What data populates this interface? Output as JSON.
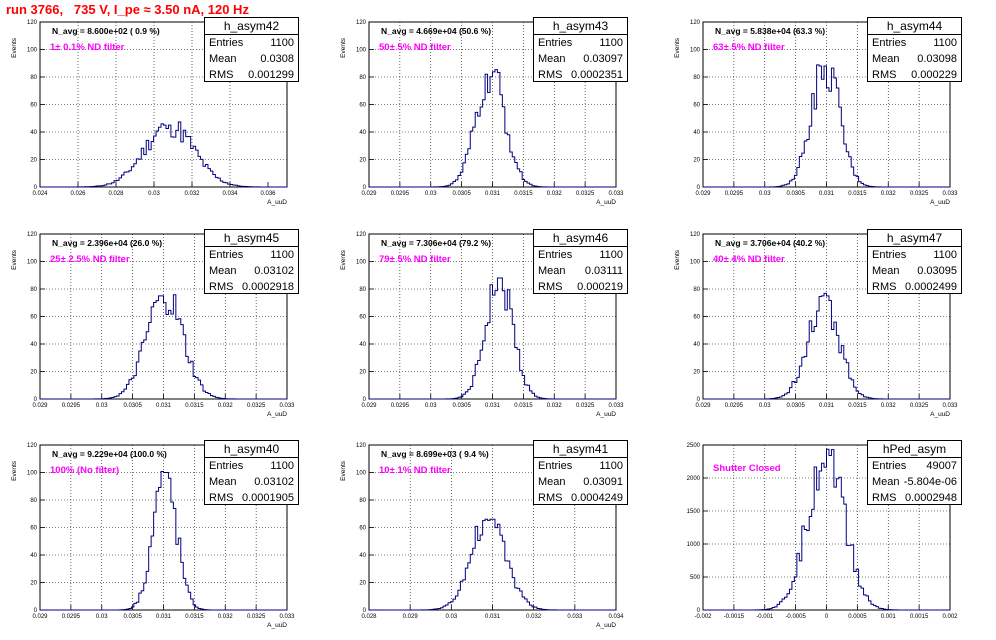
{
  "canvas_title": "run 3766,   735 V, I_pe ≈ 3.50 nA, 120 Hz",
  "chart_data": [
    {
      "type": "histogram",
      "name": "h_asym42",
      "stats": {
        "entries": "1100",
        "mean": "0.0308",
        "rms": "0.001299"
      },
      "navg": "N_avg = 8.600e+02 ( 0.9 %)",
      "filter": "1± 0.1% ND filter",
      "xlabel": "A_uuD",
      "ylabel": "Events",
      "xlim": [
        0.024,
        0.037
      ],
      "ylim": [
        0,
        120
      ],
      "xticks": [
        "0.024",
        "0.026",
        "0.028",
        "0.03",
        "0.032",
        "0.034",
        "0.036"
      ],
      "xtick_values": [
        0.024,
        0.026,
        0.028,
        0.03,
        0.032,
        0.034,
        0.036
      ],
      "yticks": [
        0,
        20,
        40,
        60,
        80,
        100,
        120
      ],
      "mean_value": 0.0308,
      "rms_value": 0.001299,
      "entries_value": 1100,
      "peak": 45
    },
    {
      "type": "histogram",
      "name": "h_asym43",
      "stats": {
        "entries": "1100",
        "mean": "0.03097",
        "rms": "0.0002351"
      },
      "navg": "N_avg = 4.669e+04 (50.6 %)",
      "filter": "50± 5% ND filter",
      "xlabel": "A_uuD",
      "ylabel": "Events",
      "xlim": [
        0.029,
        0.033
      ],
      "ylim": [
        0,
        120
      ],
      "xticks": [
        "0.029",
        "0.0295",
        "0.03",
        "0.0305",
        "0.031",
        "0.0315",
        "0.032",
        "0.0325",
        "0.033"
      ],
      "xtick_values": [
        0.029,
        0.0295,
        0.03,
        0.0305,
        0.031,
        0.0315,
        0.032,
        0.0325,
        0.033
      ],
      "yticks": [
        0,
        20,
        40,
        60,
        80,
        100,
        120
      ],
      "mean_value": 0.03097,
      "rms_value": 0.0002351,
      "entries_value": 1100,
      "peak": 82
    },
    {
      "type": "histogram",
      "name": "h_asym44",
      "stats": {
        "entries": "1100",
        "mean": "0.03098",
        "rms": "0.000229"
      },
      "navg": "N_avg = 5.838e+04 (63.3 %)",
      "filter": "63± 5% ND filter",
      "xlabel": "A_uuD",
      "ylabel": "Events",
      "xlim": [
        0.029,
        0.033
      ],
      "ylim": [
        0,
        120
      ],
      "xticks": [
        "0.029",
        "0.0295",
        "0.03",
        "0.0305",
        "0.031",
        "0.0315",
        "0.032",
        "0.0325",
        "0.033"
      ],
      "xtick_values": [
        0.029,
        0.0295,
        0.03,
        0.0305,
        0.031,
        0.0315,
        0.032,
        0.0325,
        0.033
      ],
      "yticks": [
        0,
        20,
        40,
        60,
        80,
        100,
        120
      ],
      "mean_value": 0.03098,
      "rms_value": 0.000229,
      "entries_value": 1100,
      "peak": 88
    },
    {
      "type": "histogram",
      "name": "h_asym45",
      "stats": {
        "entries": "1100",
        "mean": "0.03102",
        "rms": "0.0002918"
      },
      "navg": "N_avg = 2.396e+04 (26.0 %)",
      "filter": "25± 2.5% ND filter",
      "xlabel": "A_uuD",
      "ylabel": "Events",
      "xlim": [
        0.029,
        0.033
      ],
      "ylim": [
        0,
        120
      ],
      "xticks": [
        "0.029",
        "0.0295",
        "0.03",
        "0.0305",
        "0.031",
        "0.0315",
        "0.032",
        "0.0325",
        "0.033"
      ],
      "xtick_values": [
        0.029,
        0.0295,
        0.03,
        0.0305,
        0.031,
        0.0315,
        0.032,
        0.0325,
        0.033
      ],
      "yticks": [
        0,
        20,
        40,
        60,
        80,
        100,
        120
      ],
      "mean_value": 0.03102,
      "rms_value": 0.0002918,
      "entries_value": 1100,
      "peak": 75
    },
    {
      "type": "histogram",
      "name": "h_asym46",
      "stats": {
        "entries": "1100",
        "mean": "0.03111",
        "rms": "0.000219"
      },
      "navg": "N_avg = 7.306e+04 (79.2 %)",
      "filter": "79± 5% ND filter",
      "xlabel": "A_uuD",
      "ylabel": "Events",
      "xlim": [
        0.029,
        0.033
      ],
      "ylim": [
        0,
        120
      ],
      "xticks": [
        "0.029",
        "0.0295",
        "0.03",
        "0.0305",
        "0.031",
        "0.0315",
        "0.032",
        "0.0325",
        "0.033"
      ],
      "xtick_values": [
        0.029,
        0.0295,
        0.03,
        0.0305,
        0.031,
        0.0315,
        0.032,
        0.0325,
        0.033
      ],
      "yticks": [
        0,
        20,
        40,
        60,
        80,
        100,
        120
      ],
      "mean_value": 0.03111,
      "rms_value": 0.000219,
      "entries_value": 1100,
      "peak": 88
    },
    {
      "type": "histogram",
      "name": "h_asym47",
      "stats": {
        "entries": "1100",
        "mean": "0.03095",
        "rms": "0.0002499"
      },
      "navg": "N_avg = 3.706e+04 (40.2 %)",
      "filter": "40± 4% ND filter",
      "xlabel": "A_uuD",
      "ylabel": "Events",
      "xlim": [
        0.029,
        0.033
      ],
      "ylim": [
        0,
        120
      ],
      "xticks": [
        "0.029",
        "0.0295",
        "0.03",
        "0.0305",
        "0.031",
        "0.0315",
        "0.032",
        "0.0325",
        "0.033"
      ],
      "xtick_values": [
        0.029,
        0.0295,
        0.03,
        0.0305,
        0.031,
        0.0315,
        0.032,
        0.0325,
        0.033
      ],
      "yticks": [
        0,
        20,
        40,
        60,
        80,
        100,
        120
      ],
      "mean_value": 0.03095,
      "rms_value": 0.0002499,
      "entries_value": 1100,
      "peak": 75
    },
    {
      "type": "histogram",
      "name": "h_asym40",
      "stats": {
        "entries": "1100",
        "mean": "0.03102",
        "rms": "0.0001905"
      },
      "navg": "N_avg = 9.229e+04 (100.0 %)",
      "filter": "100% (No filter)",
      "xlabel": "A_uuD",
      "ylabel": "Events",
      "xlim": [
        0.029,
        0.033
      ],
      "ylim": [
        0,
        120
      ],
      "xticks": [
        "0.029",
        "0.0295",
        "0.03",
        "0.0305",
        "0.031",
        "0.0315",
        "0.032",
        "0.0325",
        "0.033"
      ],
      "xtick_values": [
        0.029,
        0.0295,
        0.03,
        0.0305,
        0.031,
        0.0315,
        0.032,
        0.0325,
        0.033
      ],
      "yticks": [
        0,
        20,
        40,
        60,
        80,
        100,
        120
      ],
      "mean_value": 0.03102,
      "rms_value": 0.0001905,
      "entries_value": 1100,
      "peak": 100
    },
    {
      "type": "histogram",
      "name": "h_asym41",
      "stats": {
        "entries": "1100",
        "mean": "0.03091",
        "rms": "0.0004249"
      },
      "navg": "N_avg = 8.699e+03 ( 9.4 %)",
      "filter": "10± 1% ND filter",
      "xlabel": "A_uuD",
      "ylabel": "Events",
      "xlim": [
        0.028,
        0.034
      ],
      "ylim": [
        0,
        120
      ],
      "xticks": [
        "0.028",
        "0.029",
        "0.03",
        "0.031",
        "0.032",
        "0.033",
        "0.034"
      ],
      "xtick_values": [
        0.028,
        0.029,
        0.03,
        0.031,
        0.032,
        0.033,
        0.034
      ],
      "yticks": [
        0,
        20,
        40,
        60,
        80,
        100,
        120
      ],
      "mean_value": 0.03091,
      "rms_value": 0.0004249,
      "entries_value": 1100,
      "peak": 66
    },
    {
      "type": "histogram",
      "name": "hPed_asym",
      "stats": {
        "entries": "49007",
        "mean": "-5.804e-06",
        "rms": "0.0002948"
      },
      "navg": "",
      "filter": "Shutter Closed",
      "xlabel": "",
      "ylabel": "",
      "xlim": [
        -0.002,
        0.002
      ],
      "ylim": [
        0,
        2500
      ],
      "xticks": [
        "-0.002",
        "-0.0015",
        "-0.001",
        "-0.0005",
        "0",
        "0.0005",
        "0.001",
        "0.0015",
        "0.002"
      ],
      "xtick_values": [
        -0.002,
        -0.0015,
        -0.001,
        -0.0005,
        0,
        0.0005,
        0.001,
        0.0015,
        0.002
      ],
      "yticks": [
        0,
        500,
        1000,
        1500,
        2000,
        2500
      ],
      "mean_value": -5.804e-06,
      "rms_value": 0.0002948,
      "entries_value": 49007,
      "peak": 2430
    }
  ],
  "labels": {
    "entries": "Entries",
    "mean": "Mean",
    "rms": "RMS"
  }
}
